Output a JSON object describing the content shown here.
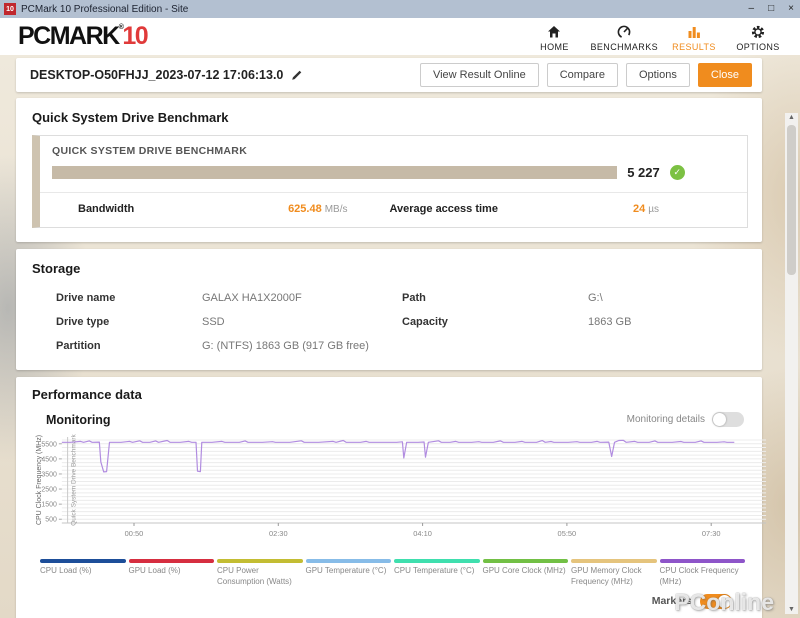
{
  "window": {
    "title": "PCMark 10 Professional Edition - Site",
    "icon_label": "10",
    "minimize": "–",
    "maximize": "□",
    "close": "×"
  },
  "header": {
    "logo_text": "PCMARK",
    "logo_reg": "®",
    "logo_number": "10",
    "nav": [
      {
        "label": "HOME",
        "icon": "home-icon",
        "active": false
      },
      {
        "label": "BENCHMARKS",
        "icon": "gauge-icon",
        "active": false
      },
      {
        "label": "RESULTS",
        "icon": "bar-chart-icon",
        "active": true
      },
      {
        "label": "OPTIONS",
        "icon": "gear-icon",
        "active": false
      }
    ]
  },
  "result_header": {
    "title": "DESKTOP-O50FHJJ_2023-07-12 17:06:13.0",
    "buttons": [
      "View Result Online",
      "Compare",
      "Options"
    ],
    "close_button": "Close"
  },
  "benchmark": {
    "section_title": "Quick System Drive Benchmark",
    "card_title": "QUICK SYSTEM DRIVE BENCHMARK",
    "score": "5 227",
    "score_check": "✓",
    "metrics": [
      {
        "label": "Bandwidth",
        "value": "625.48",
        "unit": "MB/s"
      },
      {
        "label": "Average access time",
        "value": "24",
        "unit": "µs"
      }
    ]
  },
  "storage": {
    "section_title": "Storage",
    "fields": [
      {
        "label": "Drive name",
        "value": "GALAX HA1X2000F"
      },
      {
        "label": "Path",
        "value": "G:\\"
      },
      {
        "label": "Drive type",
        "value": "SSD"
      },
      {
        "label": "Capacity",
        "value": "1863 GB"
      },
      {
        "label": "Partition",
        "value": "G: (NTFS) 1863 GB (917 GB free)"
      }
    ]
  },
  "performance": {
    "section_title": "Performance data",
    "subsection_title": "Monitoring",
    "details_label": "Monitoring details",
    "details_on": false,
    "markers_label": "Markers",
    "markers_on": true
  },
  "chart_data": {
    "type": "line",
    "title": "Monitoring",
    "xlabel": "",
    "ylabel": "CPU Clock Frequency (MHz)",
    "ylim": [
      250,
      5950
    ],
    "y_ticks": [
      500,
      1500,
      2500,
      3500,
      4500,
      5500
    ],
    "xlim": [
      0,
      488
    ],
    "x_ticks": [
      {
        "label": "00:50",
        "t": 50
      },
      {
        "label": "02:30",
        "t": 150
      },
      {
        "label": "04:10",
        "t": 250
      },
      {
        "label": "05:50",
        "t": 350
      },
      {
        "label": "07:30",
        "t": 450
      }
    ],
    "grid": true,
    "markers": [
      {
        "label": "Quick System Drive Benchmark",
        "t": 4
      }
    ],
    "series": [
      {
        "name": "CPU Clock Frequency (MHz)",
        "color": "#b18ce0",
        "points": [
          [
            0,
            5600
          ],
          [
            6,
            5600
          ],
          [
            13,
            5660
          ],
          [
            15,
            5600
          ],
          [
            19,
            5690
          ],
          [
            21,
            5600
          ],
          [
            26,
            5610
          ],
          [
            27,
            4300
          ],
          [
            29,
            3640
          ],
          [
            31,
            3660
          ],
          [
            33,
            5600
          ],
          [
            41,
            5600
          ],
          [
            47,
            5660
          ],
          [
            49,
            5600
          ],
          [
            54,
            5700
          ],
          [
            56,
            5600
          ],
          [
            61,
            5600
          ],
          [
            65,
            5690
          ],
          [
            67,
            5600
          ],
          [
            73,
            5720
          ],
          [
            75,
            5600
          ],
          [
            82,
            5600
          ],
          [
            88,
            5660
          ],
          [
            90,
            5600
          ],
          [
            93,
            5600
          ],
          [
            94,
            3680
          ],
          [
            96,
            3660
          ],
          [
            97,
            5600
          ],
          [
            104,
            5600
          ],
          [
            111,
            5660
          ],
          [
            113,
            5600
          ],
          [
            123,
            5600
          ],
          [
            127,
            5690
          ],
          [
            129,
            5600
          ],
          [
            139,
            5600
          ],
          [
            146,
            5640
          ],
          [
            148,
            5600
          ],
          [
            158,
            5600
          ],
          [
            166,
            5700
          ],
          [
            168,
            5600
          ],
          [
            178,
            5600
          ],
          [
            188,
            5660
          ],
          [
            190,
            5600
          ],
          [
            195,
            5720
          ],
          [
            197,
            5600
          ],
          [
            207,
            5600
          ],
          [
            211,
            5660
          ],
          [
            213,
            5600
          ],
          [
            224,
            5600
          ],
          [
            232,
            5600
          ],
          [
            236,
            5630
          ],
          [
            237,
            4560
          ],
          [
            239,
            5600
          ],
          [
            247,
            5600
          ],
          [
            251,
            5620
          ],
          [
            252,
            4610
          ],
          [
            254,
            5600
          ],
          [
            261,
            5700
          ],
          [
            263,
            5600
          ],
          [
            269,
            5600
          ],
          [
            273,
            5660
          ],
          [
            275,
            5600
          ],
          [
            284,
            5600
          ],
          [
            289,
            5640
          ],
          [
            291,
            5600
          ],
          [
            299,
            5600
          ],
          [
            304,
            5690
          ],
          [
            306,
            5600
          ],
          [
            314,
            5600
          ],
          [
            319,
            5660
          ],
          [
            321,
            5600
          ],
          [
            329,
            5600
          ],
          [
            333,
            5710
          ],
          [
            335,
            5600
          ],
          [
            339,
            5650
          ],
          [
            341,
            5600
          ],
          [
            351,
            5600
          ],
          [
            357,
            5640
          ],
          [
            359,
            5600
          ],
          [
            367,
            5600
          ],
          [
            371,
            5660
          ],
          [
            373,
            5600
          ],
          [
            379,
            5610
          ],
          [
            381,
            4660
          ],
          [
            383,
            5600
          ],
          [
            386,
            5720
          ],
          [
            389,
            5730
          ],
          [
            391,
            5600
          ],
          [
            397,
            5660
          ],
          [
            399,
            5600
          ],
          [
            407,
            5600
          ],
          [
            411,
            5690
          ],
          [
            413,
            5600
          ],
          [
            423,
            5600
          ],
          [
            429,
            5650
          ],
          [
            431,
            5600
          ],
          [
            439,
            5600
          ],
          [
            443,
            5690
          ],
          [
            445,
            5600
          ],
          [
            454,
            5600
          ],
          [
            459,
            5630
          ],
          [
            461,
            5600
          ],
          [
            466,
            5600
          ]
        ]
      }
    ],
    "legend": [
      {
        "label": "CPU Load (%)",
        "color": "#1d4e99"
      },
      {
        "label": "GPU Load (%)",
        "color": "#d62e40"
      },
      {
        "label": "CPU Power Consumption (Watts)",
        "color": "#c3bd33"
      },
      {
        "label": "GPU Temperature (°C)",
        "color": "#87bce8"
      },
      {
        "label": "CPU Temperature (°C)",
        "color": "#3fdfae"
      },
      {
        "label": "GPU Core Clock (MHz)",
        "color": "#72c045"
      },
      {
        "label": "GPU Memory Clock Frequency (MHz)",
        "color": "#e5c47d"
      },
      {
        "label": "CPU Clock Frequency (MHz)",
        "color": "#8e55c9"
      }
    ]
  },
  "colors": {
    "accent_orange": "#f08c1e",
    "score_bar": "#c6baa7",
    "check_green": "#7cc143"
  },
  "watermark": "PConline"
}
